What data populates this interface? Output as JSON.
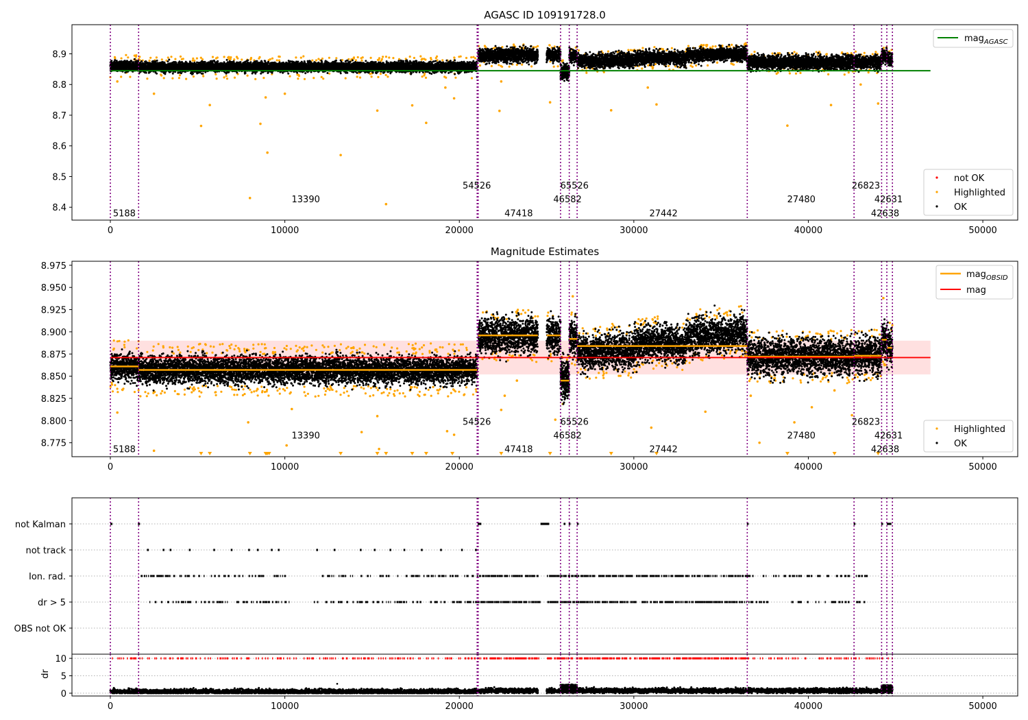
{
  "chart_data": [
    {
      "id": "p1",
      "type": "scatter",
      "title": "AGASC ID 109191728.0",
      "xlim": [
        -2200,
        52000
      ],
      "ylim": [
        8.358,
        8.995
      ],
      "x_ticks": [
        0,
        10000,
        20000,
        30000,
        40000,
        50000
      ],
      "x_tick_labels": [
        "0",
        "10000",
        "20000",
        "30000",
        "40000",
        "50000"
      ],
      "y_ticks": [
        8.4,
        8.5,
        8.6,
        8.7,
        8.8,
        8.9
      ],
      "y_tick_labels": [
        "8.4",
        "8.5",
        "8.6",
        "8.7",
        "8.8",
        "8.9"
      ],
      "obs_boundaries": [
        0,
        1620,
        21020,
        21080,
        25800,
        26300,
        26750,
        36500,
        42620,
        44200,
        44500,
        44820
      ],
      "obsid_labels": [
        {
          "text": "5188",
          "x": 800,
          "y": 8.382
        },
        {
          "text": "13390",
          "x": 11200,
          "y": 8.427
        },
        {
          "text": "54526",
          "x": 21000,
          "y": 8.472
        },
        {
          "text": "47418",
          "x": 23400,
          "y": 8.382
        },
        {
          "text": "46582",
          "x": 26200,
          "y": 8.427
        },
        {
          "text": "65526",
          "x": 26600,
          "y": 8.472
        },
        {
          "text": "27442",
          "x": 31700,
          "y": 8.382
        },
        {
          "text": "27480",
          "x": 39600,
          "y": 8.427
        },
        {
          "text": "26823",
          "x": 43300,
          "y": 8.472
        },
        {
          "text": "42631",
          "x": 44600,
          "y": 8.427
        },
        {
          "text": "42638",
          "x": 44400,
          "y": 8.382
        }
      ],
      "agasc_mag": 8.845,
      "agasc_line_x": [
        0,
        47000
      ],
      "segments_mag": [
        {
          "x0": 0,
          "x1": 1620,
          "mag": 8.861
        },
        {
          "x0": 1620,
          "x1": 21020,
          "mag": 8.857
        },
        {
          "x0": 21080,
          "x1": 24500,
          "mag": 8.896
        },
        {
          "x0": 25000,
          "x1": 25800,
          "mag": 8.896
        },
        {
          "x0": 25800,
          "x1": 26300,
          "mag": 8.845
        },
        {
          "x0": 26300,
          "x1": 26750,
          "mag": 8.892
        },
        {
          "x0": 26750,
          "x1": 36500,
          "mag": 8.884
        },
        {
          "x0": 36500,
          "x1": 42620,
          "mag": 8.872
        },
        {
          "x0": 42620,
          "x1": 44200,
          "mag": 8.873
        },
        {
          "x0": 44200,
          "x1": 44500,
          "mag": 8.891
        },
        {
          "x0": 44500,
          "x1": 44820,
          "mag": 8.882
        }
      ],
      "highlighted_outliers": [
        {
          "x": 400,
          "y": 8.81
        },
        {
          "x": 2500,
          "y": 8.77
        },
        {
          "x": 5200,
          "y": 8.665
        },
        {
          "x": 5700,
          "y": 8.733
        },
        {
          "x": 8000,
          "y": 8.43
        },
        {
          "x": 8600,
          "y": 8.672
        },
        {
          "x": 8900,
          "y": 8.758
        },
        {
          "x": 9000,
          "y": 8.578
        },
        {
          "x": 10000,
          "y": 8.77
        },
        {
          "x": 13200,
          "y": 8.57
        },
        {
          "x": 15300,
          "y": 8.715
        },
        {
          "x": 15800,
          "y": 8.41
        },
        {
          "x": 17300,
          "y": 8.732
        },
        {
          "x": 18100,
          "y": 8.675
        },
        {
          "x": 19200,
          "y": 8.79
        },
        {
          "x": 19700,
          "y": 8.755
        },
        {
          "x": 22300,
          "y": 8.714
        },
        {
          "x": 22400,
          "y": 8.81
        },
        {
          "x": 25200,
          "y": 8.742
        },
        {
          "x": 28700,
          "y": 8.716
        },
        {
          "x": 30800,
          "y": 8.79
        },
        {
          "x": 31300,
          "y": 8.735
        },
        {
          "x": 38800,
          "y": 8.666
        },
        {
          "x": 41300,
          "y": 8.733
        },
        {
          "x": 43000,
          "y": 8.8
        },
        {
          "x": 44000,
          "y": 8.738
        }
      ],
      "legends": [
        {
          "position": "top-right",
          "items": [
            {
              "label": "mag",
              "sub": "AGASC",
              "color": "#008000",
              "kind": "line"
            }
          ]
        },
        {
          "position": "lower-right",
          "items": [
            {
              "label": "not OK",
              "color": "#ff0000",
              "kind": "dot"
            },
            {
              "label": "Highlighted",
              "color": "#ffa500",
              "kind": "dot"
            },
            {
              "label": "OK",
              "color": "#000000",
              "kind": "dot"
            }
          ]
        }
      ]
    },
    {
      "id": "p2",
      "type": "scatter",
      "title": "Magnitude Estimates",
      "xlim": [
        -2200,
        52000
      ],
      "ylim": [
        8.7593,
        8.9795
      ],
      "x_ticks": [
        0,
        10000,
        20000,
        30000,
        40000,
        50000
      ],
      "x_tick_labels": [
        "0",
        "10000",
        "20000",
        "30000",
        "40000",
        "50000"
      ],
      "y_ticks": [
        8.775,
        8.8,
        8.825,
        8.85,
        8.875,
        8.9,
        8.925,
        8.95,
        8.975
      ],
      "y_tick_labels": [
        "8.775",
        "8.800",
        "8.825",
        "8.850",
        "8.875",
        "8.900",
        "8.925",
        "8.950",
        "8.975"
      ],
      "mag_line": {
        "value": 8.871,
        "x": [
          0,
          47000
        ],
        "band": [
          8.852,
          8.89
        ]
      },
      "obsid_labels": [
        {
          "text": "5188",
          "x": 800,
          "y": 8.768
        },
        {
          "text": "13390",
          "x": 11200,
          "y": 8.7835
        },
        {
          "text": "54526",
          "x": 21000,
          "y": 8.799
        },
        {
          "text": "47418",
          "x": 23400,
          "y": 8.768
        },
        {
          "text": "46582",
          "x": 26200,
          "y": 8.7835
        },
        {
          "text": "65526",
          "x": 26600,
          "y": 8.799
        },
        {
          "text": "27442",
          "x": 31700,
          "y": 8.768
        },
        {
          "text": "27480",
          "x": 39600,
          "y": 8.7835
        },
        {
          "text": "26823",
          "x": 43300,
          "y": 8.799
        },
        {
          "text": "42631",
          "x": 44600,
          "y": 8.7835
        },
        {
          "text": "42638",
          "x": 44400,
          "y": 8.768
        }
      ],
      "highlighted_outliers": [
        {
          "x": 400,
          "y": 8.809
        },
        {
          "x": 2500,
          "y": 8.766
        },
        {
          "x": 7900,
          "y": 8.798
        },
        {
          "x": 10100,
          "y": 8.772
        },
        {
          "x": 10400,
          "y": 8.813
        },
        {
          "x": 14400,
          "y": 8.787
        },
        {
          "x": 15300,
          "y": 8.805
        },
        {
          "x": 15400,
          "y": 8.768
        },
        {
          "x": 19300,
          "y": 8.788
        },
        {
          "x": 19700,
          "y": 8.784
        },
        {
          "x": 22400,
          "y": 8.812
        },
        {
          "x": 22600,
          "y": 8.828
        },
        {
          "x": 23300,
          "y": 8.845
        },
        {
          "x": 25500,
          "y": 8.801
        },
        {
          "x": 26500,
          "y": 8.94
        },
        {
          "x": 31000,
          "y": 8.792
        },
        {
          "x": 34100,
          "y": 8.81
        },
        {
          "x": 36700,
          "y": 8.828
        },
        {
          "x": 37200,
          "y": 8.775
        },
        {
          "x": 39200,
          "y": 8.798
        },
        {
          "x": 40200,
          "y": 8.815
        },
        {
          "x": 41500,
          "y": 8.834
        },
        {
          "x": 42500,
          "y": 8.806
        },
        {
          "x": 44300,
          "y": 8.938
        }
      ],
      "offscale_markers_x": [
        5200,
        5700,
        8000,
        8900,
        8950,
        9000,
        9100,
        13200,
        15300,
        15800,
        17300,
        18100,
        19600,
        22400,
        25200,
        28700,
        31300,
        38800,
        41500,
        44000
      ],
      "legends": [
        {
          "position": "top-right",
          "items": [
            {
              "label": "mag",
              "sub": "OBSID",
              "color": "#ffa500",
              "kind": "line"
            },
            {
              "label": "mag",
              "sub": "",
              "color": "#ff0000",
              "kind": "line"
            }
          ]
        },
        {
          "position": "lower-right",
          "items": [
            {
              "label": "Highlighted",
              "color": "#ffa500",
              "kind": "dot"
            },
            {
              "label": "OK",
              "color": "#000000",
              "kind": "dot"
            }
          ]
        }
      ]
    },
    {
      "id": "p3",
      "type": "scatter",
      "xlim": [
        -2200,
        52000
      ],
      "categories": [
        "not Kalman",
        "not track",
        "Ion. rad.",
        "dr > 5",
        "OBS not OK"
      ],
      "intervals": {
        "not Kalman": [
          [
            0,
            120
          ],
          [
            1580,
            1700
          ],
          [
            21050,
            21260
          ],
          [
            24650,
            25150
          ],
          [
            25980,
            26060
          ],
          [
            26270,
            26350
          ],
          [
            26740,
            26820
          ],
          [
            36480,
            36580
          ],
          [
            42600,
            42700
          ],
          [
            44180,
            44280
          ],
          [
            44500,
            44760
          ]
        ],
        "not track": [
          [
            2100,
            2200
          ],
          [
            3000,
            3100
          ],
          [
            3400,
            3500
          ],
          [
            4500,
            4600
          ],
          [
            5900,
            6000
          ],
          [
            6900,
            7000
          ],
          [
            7900,
            8000
          ],
          [
            8400,
            8500
          ],
          [
            9200,
            9300
          ],
          [
            9600,
            9700
          ],
          [
            11800,
            11900
          ],
          [
            12800,
            12900
          ],
          [
            14300,
            14400
          ],
          [
            15100,
            15200
          ],
          [
            16000,
            16100
          ],
          [
            16800,
            16900
          ],
          [
            17800,
            17900
          ],
          [
            18900,
            19000
          ],
          [
            20100,
            20200
          ],
          [
            20900,
            21000
          ]
        ]
      },
      "dense_rows": {
        "Ion. rad.": {
          "x0": 1620,
          "x1": 43500,
          "gaps": [
            [
              10300,
              11500
            ],
            [
              24600,
              25000
            ]
          ]
        },
        "dr > 5": {
          "x0": 2000,
          "x1": 43300,
          "gaps": [
            [
              10600,
              11500
            ],
            [
              24600,
              25000
            ]
          ]
        }
      }
    },
    {
      "id": "p4",
      "type": "scatter",
      "ylabel": "dr",
      "xlim": [
        -2200,
        52000
      ],
      "ylim": [
        -0.8,
        11.2
      ],
      "x_ticks": [
        0,
        10000,
        20000,
        30000,
        40000,
        50000
      ],
      "x_tick_labels": [
        "0",
        "10000",
        "20000",
        "30000",
        "40000",
        "50000"
      ],
      "y_ticks": [
        0,
        5,
        10
      ],
      "y_tick_labels": [
        "0",
        "5",
        "10"
      ],
      "clipped_value": 10,
      "isolated_points": [
        {
          "x": 13000,
          "y": 2.7
        }
      ]
    }
  ]
}
